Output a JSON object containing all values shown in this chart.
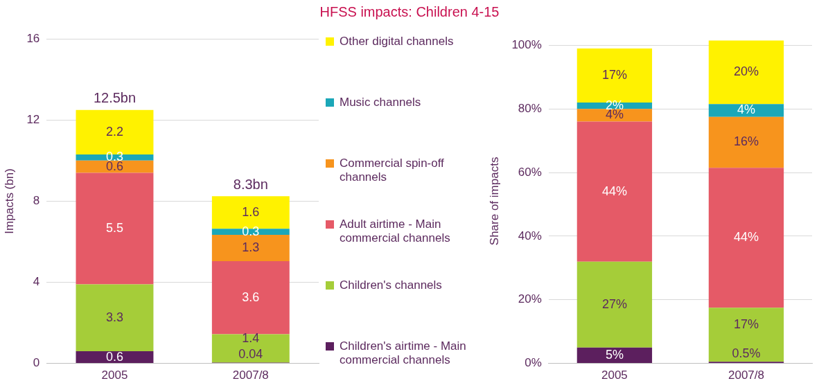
{
  "chart_data": [
    {
      "type": "bar",
      "title": "HFSS impacts: Children 4-15",
      "stacked": true,
      "categories": [
        "2005",
        "2007/8"
      ],
      "ylabel": "Impacts (bn)",
      "ylim": [
        0,
        16
      ],
      "yticks": [
        0,
        4,
        8,
        12,
        16
      ],
      "grid": "y",
      "legend": "right",
      "data_labels": true,
      "totals": [
        "12.5bn",
        "8.3bn"
      ],
      "series": [
        {
          "name": "Children's airtime - Main commercial channels",
          "color": "#5c1f5e",
          "values": [
            0.6,
            0.04
          ]
        },
        {
          "name": "Children's channels",
          "color": "#a5cd39",
          "values": [
            3.3,
            1.4
          ]
        },
        {
          "name": "Adult airtime - Main commercial channels",
          "color": "#e55a67",
          "values": [
            5.5,
            3.6
          ]
        },
        {
          "name": "Commercial spin-off channels",
          "color": "#f7941d",
          "values": [
            0.6,
            1.3
          ]
        },
        {
          "name": "Music channels",
          "color": "#1ba7b8",
          "values": [
            0.3,
            0.3
          ]
        },
        {
          "name": "Other digital channels",
          "color": "#fff200",
          "values": [
            2.2,
            1.6
          ]
        }
      ]
    },
    {
      "type": "bar",
      "stacked": true,
      "categories": [
        "2005",
        "2007/8"
      ],
      "ylabel": "Share of impacts",
      "ylim": [
        0,
        102
      ],
      "yticks": [
        {
          "value": 0,
          "label": "0%"
        },
        {
          "value": 20,
          "label": "20%"
        },
        {
          "value": 40,
          "label": "40%"
        },
        {
          "value": 60,
          "label": "60%"
        },
        {
          "value": 80,
          "label": "80%"
        },
        {
          "value": 100,
          "label": "100%"
        }
      ],
      "grid": "y",
      "legend": false,
      "series": [
        {
          "color": "#5c1f5e",
          "values": [
            5,
            0.5
          ],
          "value_labels": [
            "5%",
            "0.5%"
          ]
        },
        {
          "color": "#a5cd39",
          "values": [
            27,
            17
          ],
          "value_labels": [
            "27%",
            "17%"
          ]
        },
        {
          "color": "#e55a67",
          "values": [
            44,
            44
          ],
          "value_labels": [
            "44%",
            "44%"
          ]
        },
        {
          "color": "#f7941d",
          "values": [
            4,
            16
          ],
          "value_labels": [
            "4%",
            "16%"
          ]
        },
        {
          "color": "#1ba7b8",
          "values": [
            2,
            4
          ],
          "value_labels": [
            "2%",
            "4%"
          ]
        },
        {
          "color": "#fff200",
          "values": [
            17,
            20
          ],
          "value_labels": [
            "17%",
            "20%"
          ]
        }
      ]
    }
  ]
}
